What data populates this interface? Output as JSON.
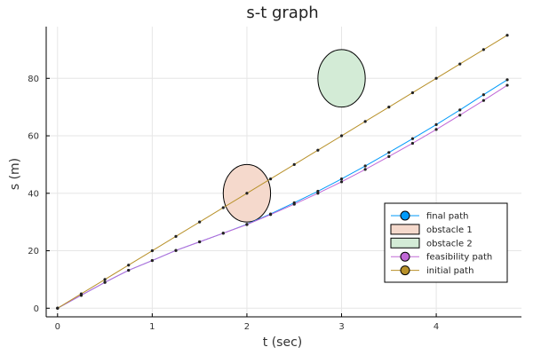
{
  "chart_data": {
    "type": "line",
    "title": "s-t graph",
    "xlabel": "t (sec)",
    "ylabel": "s (m)",
    "xlim": [
      -0.12,
      4.9
    ],
    "ylim": [
      -3,
      98
    ],
    "xticks": [
      0,
      1,
      2,
      3,
      4
    ],
    "yticks": [
      0,
      20,
      40,
      60,
      80
    ],
    "grid": true,
    "legend_position": "bottom-right",
    "series": [
      {
        "name": "final path",
        "color": "#009AFA",
        "markers": true,
        "x": [
          0,
          0.25,
          0.5,
          0.75,
          1.0,
          1.25,
          1.5,
          1.75,
          2.0,
          2.25,
          2.5,
          2.75,
          3.0,
          3.25,
          3.5,
          3.75,
          4.0,
          4.25,
          4.5,
          4.75
        ],
        "y": [
          0,
          4.5,
          9.0,
          13.2,
          16.6,
          20.1,
          23.1,
          26.1,
          29.2,
          32.8,
          36.7,
          40.7,
          45.0,
          49.5,
          54.2,
          59.0,
          63.9,
          69.0,
          74.3,
          79.5
        ]
      },
      {
        "name": "feasibility path",
        "color": "#C068D6",
        "markers": true,
        "x": [
          0,
          0.25,
          0.5,
          0.75,
          1.0,
          1.25,
          1.5,
          1.75,
          2.0,
          2.25,
          2.5,
          2.75,
          3.0,
          3.25,
          3.5,
          3.75,
          4.0,
          4.25,
          4.5,
          4.75
        ],
        "y": [
          0,
          4.5,
          9.0,
          13.2,
          16.6,
          20.1,
          23.1,
          26.1,
          29.1,
          32.6,
          36.2,
          40.0,
          44.0,
          48.3,
          52.8,
          57.4,
          62.2,
          67.2,
          72.3,
          77.6
        ]
      },
      {
        "name": "initial path",
        "color": "#B8912A",
        "markers": true,
        "x": [
          0,
          0.25,
          0.5,
          0.75,
          1.0,
          1.25,
          1.5,
          1.75,
          2.0,
          2.25,
          2.5,
          2.75,
          3.0,
          3.25,
          3.5,
          3.75,
          4.0,
          4.25,
          4.5,
          4.75
        ],
        "y": [
          0,
          5,
          10,
          15,
          20,
          25,
          30,
          35,
          40,
          45,
          50,
          55,
          60,
          65,
          70,
          75,
          80,
          85,
          90,
          95
        ]
      }
    ],
    "obstacles": [
      {
        "name": "obstacle 1",
        "cx": 2.0,
        "cy": 40,
        "rx": 0.25,
        "ry": 10,
        "fill": "#F5D9CC",
        "stroke": "#000000"
      },
      {
        "name": "obstacle 2",
        "cx": 3.0,
        "cy": 80,
        "rx": 0.25,
        "ry": 10,
        "fill": "#D3EBD6",
        "stroke": "#000000"
      }
    ],
    "legend": [
      {
        "label": "final path",
        "kind": "line-marker",
        "color": "#009AFA"
      },
      {
        "label": "obstacle 1",
        "kind": "patch",
        "color": "#F5D9CC"
      },
      {
        "label": "obstacle 2",
        "kind": "patch",
        "color": "#D3EBD6"
      },
      {
        "label": "feasibility path",
        "kind": "line-marker",
        "color": "#C068D6"
      },
      {
        "label": "initial path",
        "kind": "line-marker",
        "color": "#B8912A"
      }
    ]
  }
}
